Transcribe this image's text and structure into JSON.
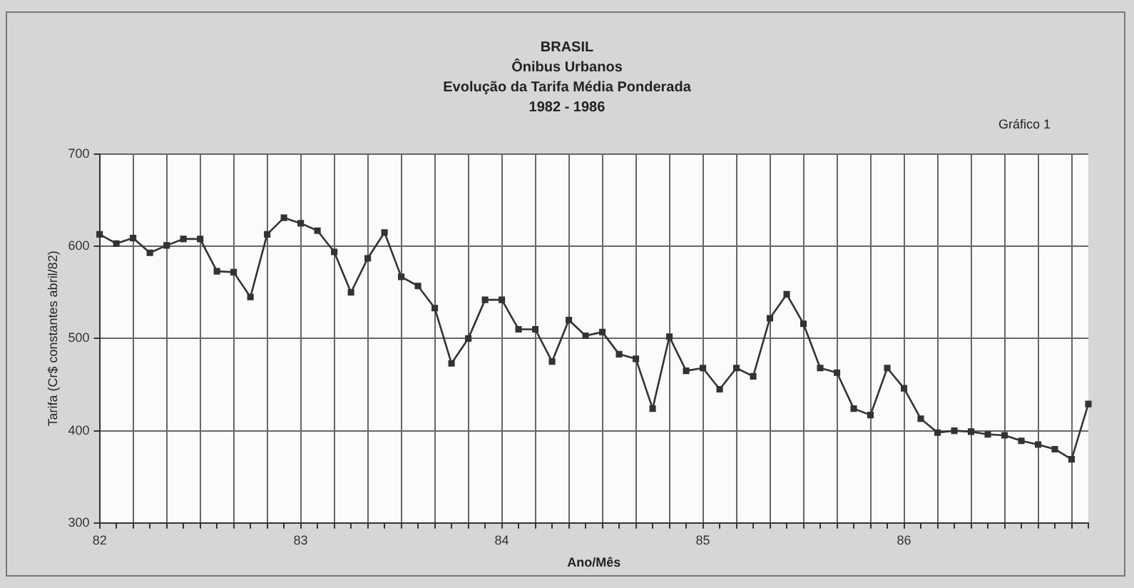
{
  "chart_data": {
    "type": "line",
    "title": "BRASIL",
    "subtitle": "Ônibus Urbanos",
    "annotations": [
      "Evolução da Tarifa Média Ponderada",
      "1982 - 1986",
      "Gráfico 1"
    ],
    "xlabel": "Ano/Mês",
    "ylabel": "Tarifa (Cr$ constantes abril/82)",
    "categories": [
      "82",
      null,
      null,
      null,
      null,
      null,
      null,
      null,
      null,
      null,
      null,
      null,
      "83",
      null,
      null,
      null,
      null,
      null,
      null,
      null,
      null,
      null,
      null,
      null,
      "84",
      null,
      null,
      null,
      null,
      null,
      null,
      null,
      null,
      null,
      null,
      null,
      "85",
      null,
      null,
      null,
      null,
      null,
      null,
      null,
      null,
      null,
      null,
      null,
      "86",
      null,
      null,
      null,
      null,
      null,
      null,
      null,
      null,
      null,
      null,
      null
    ],
    "series": [
      {
        "color": "#333333",
        "values": [
          613,
          603,
          609,
          593,
          601,
          608,
          608,
          573,
          572,
          545,
          613,
          631,
          625,
          617,
          594,
          550,
          587,
          615,
          567,
          557,
          533,
          473,
          500,
          542,
          542,
          510,
          510,
          475,
          520,
          503,
          507,
          483,
          478,
          424,
          502,
          465,
          468,
          445,
          468,
          459,
          522,
          548,
          516,
          468,
          463,
          424,
          417,
          468,
          446,
          413,
          398,
          400,
          399,
          396,
          395,
          389,
          385,
          380,
          369,
          429
        ]
      }
    ],
    "ylim": [
      300,
      700
    ],
    "yticks": [
      300,
      400,
      500,
      600,
      700
    ],
    "grid": true,
    "marker": "square",
    "line_style": "solid",
    "legend": false
  }
}
